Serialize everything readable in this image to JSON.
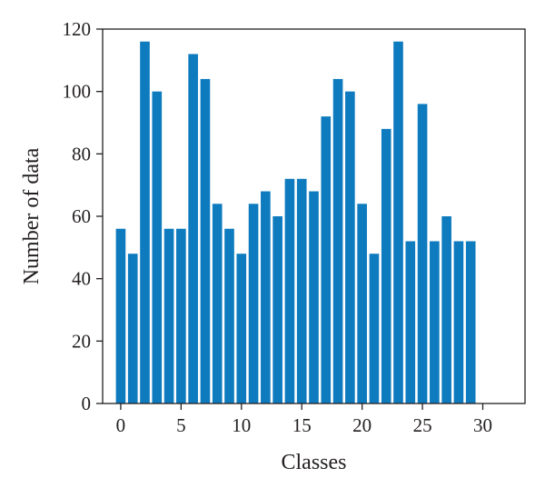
{
  "chart_data": {
    "type": "bar",
    "xlabel": "Classes",
    "ylabel": "Number of data",
    "x": [
      0,
      1,
      2,
      3,
      4,
      5,
      6,
      7,
      8,
      9,
      10,
      11,
      12,
      13,
      14,
      15,
      16,
      17,
      18,
      19,
      20,
      21,
      22,
      23,
      24,
      25,
      26,
      27,
      28,
      29
    ],
    "values": [
      56,
      48,
      116,
      100,
      56,
      56,
      112,
      104,
      64,
      56,
      48,
      64,
      68,
      60,
      72,
      72,
      68,
      92,
      104,
      100,
      64,
      48,
      88,
      116,
      52,
      96,
      52,
      60,
      52,
      52
    ],
    "xlim": [
      -1.5,
      33.5
    ],
    "ylim": [
      0,
      120
    ],
    "xticks": [
      0,
      5,
      10,
      15,
      20,
      25,
      30
    ],
    "yticks": [
      0,
      20,
      40,
      60,
      80,
      100,
      120
    ],
    "bar_color": "#0e7bbf",
    "grid": false,
    "legend": "none"
  }
}
